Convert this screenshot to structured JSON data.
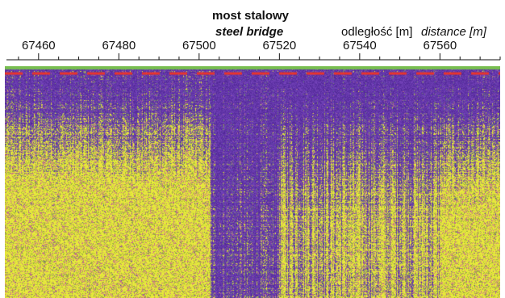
{
  "chart_data": {
    "type": "heatmap",
    "title": "most stalowy",
    "subtitle": "steel bridge",
    "xlabel": "odległość [m]",
    "xlabel_en": "distance [m]",
    "x_ticks": [
      67460,
      67480,
      67500,
      67520,
      67540,
      67560
    ],
    "x_minor_step": 5,
    "xlim": [
      67452,
      67575
    ],
    "anomaly": {
      "label": "steel bridge",
      "x_start": 67503,
      "x_end": 67560,
      "strong_x_end": 67520
    },
    "reference_line": {
      "style": "dashed",
      "color": "#e8342c"
    },
    "colors": {
      "background_signal": "#5a2fa0",
      "high_signal": "#d9dd3a",
      "reference": "#e8342c"
    },
    "grid": false
  }
}
